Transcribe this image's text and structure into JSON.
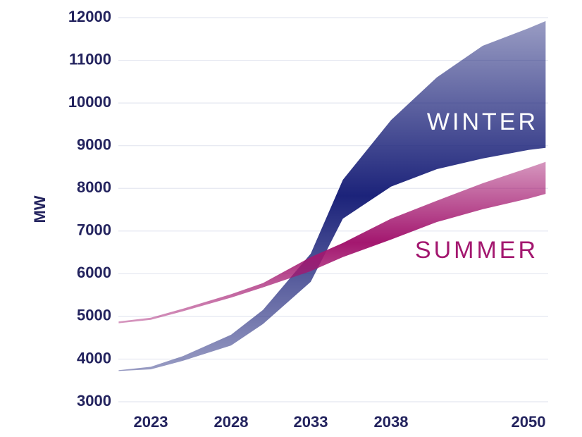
{
  "chart_data": {
    "type": "band",
    "y_label": "MW",
    "x": [
      2021,
      2023,
      2025,
      2028,
      2030,
      2033,
      2035,
      2038,
      2042,
      2046,
      2050,
      2051.5
    ],
    "xlim": [
      2021,
      2051.5
    ],
    "xticks": [
      2023,
      2028,
      2033,
      2038,
      2050
    ],
    "ylim": [
      3000,
      12000
    ],
    "yticks": [
      3000,
      4000,
      5000,
      6000,
      7000,
      8000,
      9000,
      10000,
      11000,
      12000
    ],
    "grid": true,
    "series": [
      {
        "name": "WINTER",
        "color": "#1c237a",
        "low": [
          3720,
          3760,
          3960,
          4320,
          4820,
          5810,
          7290,
          8040,
          8450,
          8700,
          8900,
          8950
        ],
        "high": [
          3740,
          3820,
          4070,
          4570,
          5150,
          6470,
          8200,
          9600,
          10600,
          11340,
          11750,
          11920
        ]
      },
      {
        "name": "SUMMER",
        "color": "#a3176f",
        "low": [
          4840,
          4920,
          5120,
          5440,
          5680,
          6060,
          6390,
          6800,
          7210,
          7510,
          7760,
          7870
        ],
        "high": [
          4880,
          4970,
          5180,
          5520,
          5780,
          6390,
          6720,
          7290,
          7710,
          8120,
          8480,
          8620
        ]
      }
    ]
  }
}
